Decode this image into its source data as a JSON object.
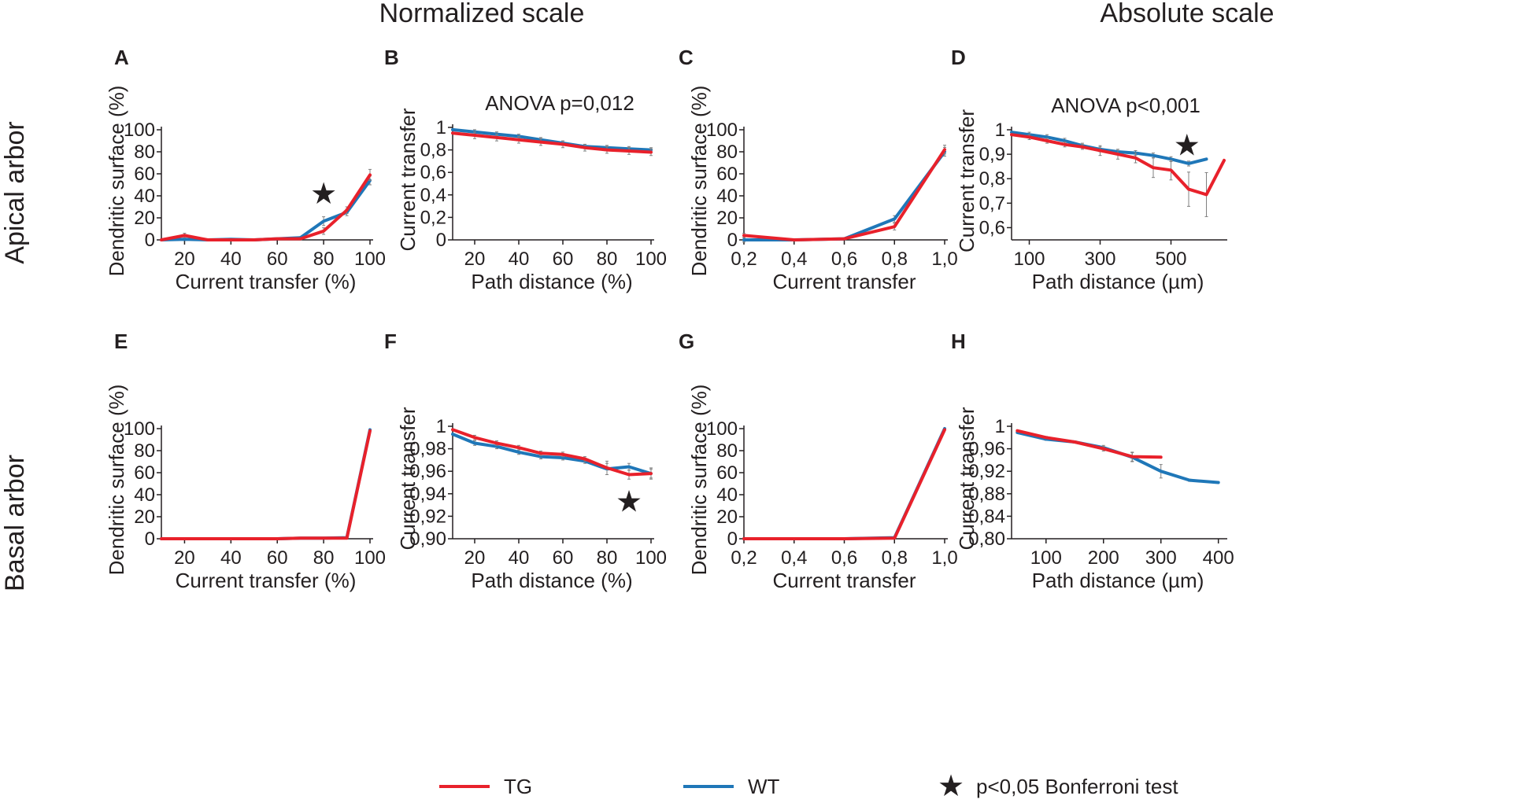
{
  "column_headers": [
    "Normalized scale",
    "Absolute scale"
  ],
  "row_headers": [
    "Apical arbor",
    "Basal arbor"
  ],
  "colors": {
    "TG": "#e8212b",
    "WT": "#1f77b8",
    "axis": "#231f20",
    "errorbar": "#808080"
  },
  "legend": {
    "tg_label": "TG",
    "wt_label": "WT",
    "star_label": "p<0,05 Bonferroni test",
    "star_icon": "★"
  },
  "chart_data": [
    {
      "id": "A",
      "type": "line",
      "xlabel": "Current transfer (%)",
      "ylabel": "Dendritic surface (%)",
      "xlim": [
        10,
        100
      ],
      "ylim": [
        0,
        100
      ],
      "xticks": [
        {
          "v": 20,
          "label": "20"
        },
        {
          "v": 40,
          "label": "40"
        },
        {
          "v": 60,
          "label": "60"
        },
        {
          "v": 80,
          "label": "80"
        },
        {
          "v": 100,
          "label": "100"
        }
      ],
      "yticks": [
        {
          "v": 0,
          "label": "0"
        },
        {
          "v": 20,
          "label": "20"
        },
        {
          "v": 40,
          "label": "40"
        },
        {
          "v": 60,
          "label": "60"
        },
        {
          "v": 80,
          "label": "80"
        },
        {
          "v": 100,
          "label": "100"
        }
      ],
      "series": [
        {
          "name": "WT",
          "x": [
            10,
            20,
            30,
            40,
            50,
            60,
            70,
            80,
            90,
            100
          ],
          "y": [
            0,
            0.5,
            0,
            0.5,
            0,
            1,
            2,
            17,
            25,
            54
          ],
          "err": [
            0,
            1,
            0,
            0,
            0,
            0.5,
            1,
            4,
            3,
            4
          ]
        },
        {
          "name": "TG",
          "x": [
            10,
            20,
            30,
            40,
            50,
            60,
            70,
            80,
            90,
            100
          ],
          "y": [
            0,
            4,
            0,
            0,
            0,
            1,
            1,
            8,
            27,
            59
          ],
          "err": [
            0,
            2,
            0,
            0,
            0,
            0.5,
            1,
            3,
            3,
            5
          ]
        }
      ],
      "stars": [
        {
          "x": 80,
          "y": 43
        }
      ],
      "annotation": ""
    },
    {
      "id": "B",
      "type": "line",
      "xlabel": "Path distance (%)",
      "ylabel": "Current transfer",
      "xlim": [
        10,
        100
      ],
      "ylim": [
        0,
        1
      ],
      "xticks": [
        {
          "v": 20,
          "label": "20"
        },
        {
          "v": 40,
          "label": "40"
        },
        {
          "v": 60,
          "label": "60"
        },
        {
          "v": 80,
          "label": "80"
        },
        {
          "v": 100,
          "label": "100"
        }
      ],
      "yticks": [
        {
          "v": 0,
          "label": "0"
        },
        {
          "v": 0.2,
          "label": "0,2"
        },
        {
          "v": 0.4,
          "label": "0,4"
        },
        {
          "v": 0.6,
          "label": "0,6"
        },
        {
          "v": 0.8,
          "label": "0,8"
        },
        {
          "v": 1,
          "label": "1"
        }
      ],
      "series": [
        {
          "name": "WT",
          "x": [
            10,
            20,
            30,
            40,
            50,
            60,
            70,
            80,
            90,
            100
          ],
          "y": [
            0.98,
            0.96,
            0.94,
            0.92,
            0.89,
            0.86,
            0.83,
            0.82,
            0.81,
            0.8
          ],
          "err": [
            0,
            0.02,
            0.02,
            0.02,
            0.02,
            0.02,
            0.02,
            0.02,
            0.02,
            0.02
          ]
        },
        {
          "name": "TG",
          "x": [
            10,
            20,
            30,
            40,
            50,
            60,
            70,
            80,
            90,
            100
          ],
          "y": [
            0.95,
            0.93,
            0.91,
            0.89,
            0.87,
            0.85,
            0.82,
            0.8,
            0.79,
            0.78
          ],
          "err": [
            0,
            0.03,
            0.03,
            0.03,
            0.03,
            0.03,
            0.03,
            0.03,
            0.03,
            0.03
          ]
        }
      ],
      "stars": [],
      "annotation": "ANOVA p=0,012"
    },
    {
      "id": "C",
      "type": "line",
      "xlabel": "Current transfer",
      "ylabel": "Dendritic surface (%)",
      "xlim": [
        0.2,
        1.0
      ],
      "ylim": [
        0,
        100
      ],
      "xticks": [
        {
          "v": 0.2,
          "label": "0,2"
        },
        {
          "v": 0.4,
          "label": "0,4"
        },
        {
          "v": 0.6,
          "label": "0,6"
        },
        {
          "v": 0.8,
          "label": "0,8"
        },
        {
          "v": 1.0,
          "label": "1,0"
        }
      ],
      "yticks": [
        {
          "v": 0,
          "label": "0"
        },
        {
          "v": 20,
          "label": "20"
        },
        {
          "v": 40,
          "label": "40"
        },
        {
          "v": 60,
          "label": "60"
        },
        {
          "v": 80,
          "label": "80"
        },
        {
          "v": 100,
          "label": "100"
        }
      ],
      "series": [
        {
          "name": "WT",
          "x": [
            0.2,
            0.4,
            0.6,
            0.8,
            1.0
          ],
          "y": [
            0,
            0,
            1,
            19,
            80
          ],
          "err": [
            2,
            0,
            1,
            3,
            4
          ]
        },
        {
          "name": "TG",
          "x": [
            0.2,
            0.4,
            0.6,
            0.8,
            1.0
          ],
          "y": [
            4,
            0,
            1,
            12,
            82
          ],
          "err": [
            2,
            0,
            1,
            3,
            4
          ]
        }
      ],
      "stars": [],
      "annotation": ""
    },
    {
      "id": "D",
      "type": "line",
      "xlabel": "Path distance (µm)",
      "ylabel": "Current transfer",
      "xlim": [
        50,
        650
      ],
      "ylim": [
        0.55,
        1
      ],
      "xticks": [
        {
          "v": 100,
          "label": "100"
        },
        {
          "v": 300,
          "label": "300"
        },
        {
          "v": 500,
          "label": "500"
        }
      ],
      "yticks": [
        {
          "v": 0.6,
          "label": "0,6"
        },
        {
          "v": 0.7,
          "label": "0,7"
        },
        {
          "v": 0.8,
          "label": "0,8"
        },
        {
          "v": 0.9,
          "label": "0,9"
        },
        {
          "v": 1,
          "label": "1"
        }
      ],
      "series": [
        {
          "name": "WT",
          "x": [
            50,
            100,
            150,
            200,
            250,
            300,
            350,
            400,
            450,
            500,
            550,
            600
          ],
          "y": [
            0.99,
            0.98,
            0.97,
            0.955,
            0.935,
            0.92,
            0.91,
            0.905,
            0.895,
            0.88,
            0.862,
            0.88
          ],
          "err": [
            0,
            0.01,
            0.01,
            0.01,
            0.01,
            0.01,
            0.01,
            0.01,
            0.01,
            0.01,
            0.01,
            0
          ]
        },
        {
          "name": "TG",
          "x": [
            50,
            100,
            150,
            200,
            250,
            300,
            350,
            400,
            450,
            500,
            550,
            600,
            650
          ],
          "y": [
            0.98,
            0.97,
            0.955,
            0.94,
            0.93,
            0.915,
            0.9,
            0.885,
            0.845,
            0.835,
            0.757,
            0.735,
            0.875
          ],
          "err": [
            0,
            0.01,
            0.01,
            0.01,
            0.01,
            0.02,
            0.02,
            0.02,
            0.04,
            0.04,
            0.07,
            0.09,
            0
          ]
        }
      ],
      "stars": [
        {
          "x": 545,
          "y": 0.94
        }
      ],
      "annotation": "ANOVA p<0,001"
    },
    {
      "id": "E",
      "type": "line",
      "xlabel": "Current transfer (%)",
      "ylabel": "Dendritic surface (%)",
      "xlim": [
        10,
        100
      ],
      "ylim": [
        0,
        100
      ],
      "xticks": [
        {
          "v": 20,
          "label": "20"
        },
        {
          "v": 40,
          "label": "40"
        },
        {
          "v": 60,
          "label": "60"
        },
        {
          "v": 80,
          "label": "80"
        },
        {
          "v": 100,
          "label": "100"
        }
      ],
      "yticks": [
        {
          "v": 0,
          "label": "0"
        },
        {
          "v": 20,
          "label": "20"
        },
        {
          "v": 40,
          "label": "40"
        },
        {
          "v": 60,
          "label": "60"
        },
        {
          "v": 80,
          "label": "80"
        },
        {
          "v": 100,
          "label": "100"
        }
      ],
      "series": [
        {
          "name": "WT",
          "x": [
            10,
            20,
            30,
            40,
            50,
            60,
            70,
            80,
            90,
            100
          ],
          "y": [
            0,
            0,
            0,
            0,
            0,
            0,
            0.5,
            0.5,
            1,
            99
          ],
          "err": [
            0,
            0,
            0,
            0,
            0,
            0,
            0,
            0,
            0,
            0
          ]
        },
        {
          "name": "TG",
          "x": [
            10,
            20,
            30,
            40,
            50,
            60,
            70,
            80,
            90,
            100
          ],
          "y": [
            0,
            0,
            0,
            0,
            0,
            0,
            0.5,
            0.5,
            0.5,
            98
          ],
          "err": [
            0,
            0,
            0,
            0,
            0,
            0,
            0,
            0,
            0,
            0
          ]
        }
      ],
      "stars": [],
      "annotation": ""
    },
    {
      "id": "F",
      "type": "line",
      "xlabel": "Path distance (%)",
      "ylabel": "Current transfer",
      "xlim": [
        10,
        100
      ],
      "ylim": [
        0.9,
        1
      ],
      "xticks": [
        {
          "v": 20,
          "label": "20"
        },
        {
          "v": 40,
          "label": "40"
        },
        {
          "v": 60,
          "label": "60"
        },
        {
          "v": 80,
          "label": "80"
        },
        {
          "v": 100,
          "label": "100"
        }
      ],
      "yticks": [
        {
          "v": 0.9,
          "label": "0,90"
        },
        {
          "v": 0.92,
          "label": "0,92"
        },
        {
          "v": 0.94,
          "label": "0,94"
        },
        {
          "v": 0.96,
          "label": "0,96"
        },
        {
          "v": 0.98,
          "label": "0,98"
        },
        {
          "v": 1,
          "label": "1"
        }
      ],
      "series": [
        {
          "name": "WT",
          "x": [
            10,
            20,
            30,
            40,
            50,
            60,
            70,
            80,
            90,
            100
          ],
          "y": [
            0.993,
            0.985,
            0.982,
            0.977,
            0.973,
            0.972,
            0.969,
            0.962,
            0.964,
            0.958
          ],
          "err": [
            0,
            0.002,
            0.002,
            0.002,
            0.002,
            0.002,
            0.002,
            0.005,
            0.003,
            0.004
          ]
        },
        {
          "name": "TG",
          "x": [
            10,
            20,
            30,
            40,
            50,
            60,
            70,
            80,
            90,
            100
          ],
          "y": [
            0.997,
            0.99,
            0.985,
            0.981,
            0.976,
            0.975,
            0.971,
            0.963,
            0.957,
            0.958
          ],
          "err": [
            0,
            0.002,
            0.002,
            0.002,
            0.002,
            0.002,
            0.002,
            0.006,
            0.004,
            0.005
          ]
        }
      ],
      "stars": [
        {
          "x": 90,
          "y": 0.934
        }
      ],
      "annotation": ""
    },
    {
      "id": "G",
      "type": "line",
      "xlabel": "Current transfer",
      "ylabel": "Dendritic surface (%)",
      "xlim": [
        0.2,
        1.0
      ],
      "ylim": [
        0,
        100
      ],
      "xticks": [
        {
          "v": 0.2,
          "label": "0,2"
        },
        {
          "v": 0.4,
          "label": "0,4"
        },
        {
          "v": 0.6,
          "label": "0,6"
        },
        {
          "v": 0.8,
          "label": "0,8"
        },
        {
          "v": 1.0,
          "label": "1,0"
        }
      ],
      "yticks": [
        {
          "v": 0,
          "label": "0"
        },
        {
          "v": 20,
          "label": "20"
        },
        {
          "v": 40,
          "label": "40"
        },
        {
          "v": 60,
          "label": "60"
        },
        {
          "v": 80,
          "label": "80"
        },
        {
          "v": 100,
          "label": "100"
        }
      ],
      "series": [
        {
          "name": "WT",
          "x": [
            0.2,
            0.4,
            0.6,
            0.8,
            1.0
          ],
          "y": [
            0,
            0,
            0,
            1,
            100
          ],
          "err": [
            0,
            0,
            0,
            0,
            0
          ]
        },
        {
          "name": "TG",
          "x": [
            0.2,
            0.4,
            0.6,
            0.8,
            1.0
          ],
          "y": [
            0,
            0,
            0,
            0.5,
            99
          ],
          "err": [
            0,
            0,
            0,
            0,
            0
          ]
        }
      ],
      "stars": [],
      "annotation": ""
    },
    {
      "id": "H",
      "type": "line",
      "xlabel": "Path distance (µm)",
      "ylabel": "Current transfer",
      "xlim": [
        40,
        410
      ],
      "ylim": [
        0.8,
        1
      ],
      "xticks": [
        {
          "v": 100,
          "label": "100"
        },
        {
          "v": 200,
          "label": "200"
        },
        {
          "v": 300,
          "label": "300"
        },
        {
          "v": 400,
          "label": "400"
        }
      ],
      "yticks": [
        {
          "v": 0.8,
          "label": "0,80"
        },
        {
          "v": 0.84,
          "label": "0,84"
        },
        {
          "v": 0.88,
          "label": "0,88"
        },
        {
          "v": 0.92,
          "label": "0,92"
        },
        {
          "v": 0.96,
          "label": "0,96"
        },
        {
          "v": 1,
          "label": "1"
        }
      ],
      "series": [
        {
          "name": "WT",
          "x": [
            50,
            100,
            150,
            200,
            250,
            300,
            350,
            400
          ],
          "y": [
            0.989,
            0.977,
            0.972,
            0.962,
            0.945,
            0.92,
            0.904,
            0.9
          ],
          "err": [
            0,
            0.002,
            0.002,
            0.004,
            0.008,
            0.012,
            0.002,
            0
          ]
        },
        {
          "name": "TG",
          "x": [
            50,
            100,
            150,
            200,
            250,
            300
          ],
          "y": [
            0.992,
            0.98,
            0.972,
            0.96,
            0.946,
            0.945
          ],
          "err": [
            0,
            0.002,
            0.002,
            0.004,
            0.008,
            0
          ]
        }
      ],
      "stars": [],
      "annotation": ""
    }
  ]
}
